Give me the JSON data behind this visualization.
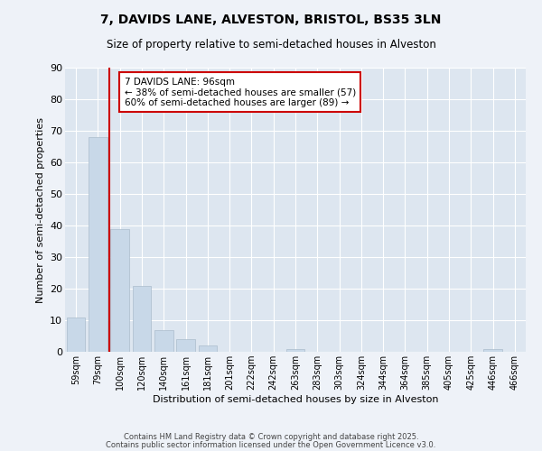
{
  "title": "7, DAVIDS LANE, ALVESTON, BRISTOL, BS35 3LN",
  "subtitle": "Size of property relative to semi-detached houses in Alveston",
  "xlabel": "Distribution of semi-detached houses by size in Alveston",
  "ylabel": "Number of semi-detached properties",
  "categories": [
    "59sqm",
    "79sqm",
    "100sqm",
    "120sqm",
    "140sqm",
    "161sqm",
    "181sqm",
    "201sqm",
    "222sqm",
    "242sqm",
    "263sqm",
    "283sqm",
    "303sqm",
    "324sqm",
    "344sqm",
    "364sqm",
    "385sqm",
    "405sqm",
    "425sqm",
    "446sqm",
    "466sqm"
  ],
  "values": [
    11,
    68,
    39,
    21,
    7,
    4,
    2,
    0,
    0,
    0,
    1,
    0,
    0,
    0,
    0,
    0,
    0,
    0,
    0,
    1,
    0
  ],
  "bar_color": "#c8d8e8",
  "bar_edge_color": "#aabccc",
  "vline_color": "#cc0000",
  "vline_pos": 1.5,
  "ylim": [
    0,
    90
  ],
  "yticks": [
    0,
    10,
    20,
    30,
    40,
    50,
    60,
    70,
    80,
    90
  ],
  "annotation_title": "7 DAVIDS LANE: 96sqm",
  "annotation_line1": "← 38% of semi-detached houses are smaller (57)",
  "annotation_line2": "60% of semi-detached houses are larger (89) →",
  "annotation_box_color": "#ffffff",
  "annotation_box_edge": "#cc0000",
  "bg_color": "#eef2f8",
  "plot_bg_color": "#dde6f0",
  "grid_color": "#ffffff",
  "footer1": "Contains HM Land Registry data © Crown copyright and database right 2025.",
  "footer2": "Contains public sector information licensed under the Open Government Licence v3.0."
}
